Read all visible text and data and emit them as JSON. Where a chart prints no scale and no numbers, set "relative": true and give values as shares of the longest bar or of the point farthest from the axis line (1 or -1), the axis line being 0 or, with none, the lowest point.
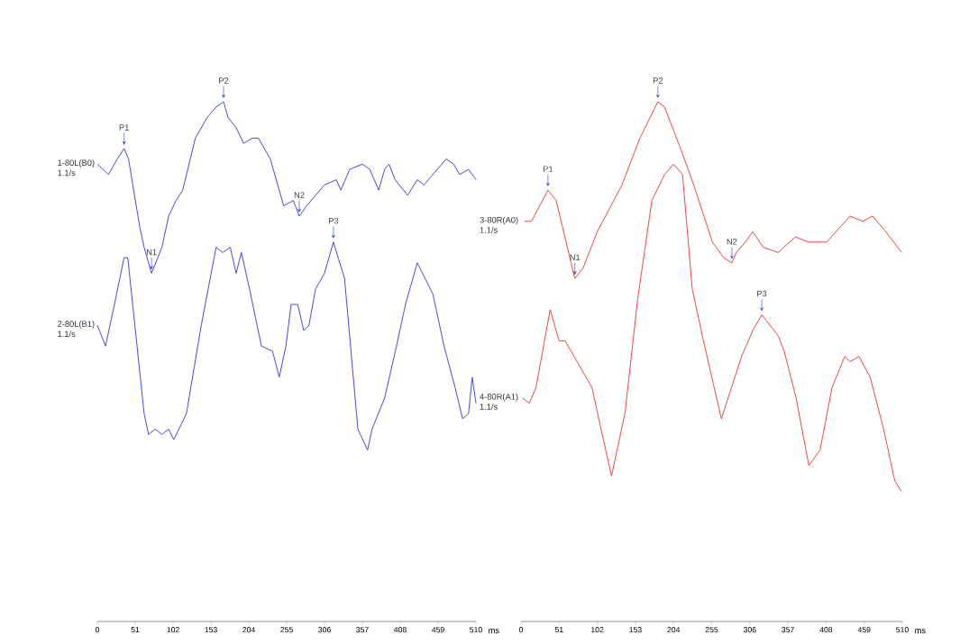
{
  "chart_data": [
    {
      "type": "line",
      "relative": true,
      "xlim": [
        0,
        510
      ],
      "xticks": [
        0,
        51,
        102,
        153,
        204,
        255,
        306,
        357,
        408,
        459,
        510
      ],
      "xlabel": "ms",
      "series": [
        {
          "name": "1-80L(B0)",
          "color": "#3c3cd8",
          "x": [
            0,
            15,
            27,
            36,
            42,
            57,
            63,
            73,
            87,
            96,
            106,
            115,
            132,
            136,
            148,
            160,
            170,
            176,
            187,
            197,
            209,
            217,
            233,
            243,
            251,
            264,
            272,
            282,
            294,
            306,
            322,
            328,
            340,
            357,
            367,
            379,
            387,
            393,
            401,
            418,
            431,
            440,
            458,
            470,
            480,
            488,
            500,
            510
          ],
          "values": [
            0.88,
            0.86,
            0.89,
            0.91,
            0.89,
            0.76,
            0.72,
            0.67,
            0.72,
            0.78,
            0.81,
            0.83,
            0.93,
            0.94,
            0.97,
            0.99,
            1.0,
            0.97,
            0.95,
            0.92,
            0.93,
            0.93,
            0.89,
            0.84,
            0.8,
            0.81,
            0.78,
            0.8,
            0.82,
            0.84,
            0.85,
            0.83,
            0.87,
            0.88,
            0.87,
            0.83,
            0.87,
            0.88,
            0.85,
            0.82,
            0.85,
            0.84,
            0.87,
            0.89,
            0.88,
            0.86,
            0.87,
            0.85
          ]
        },
        {
          "name": "2-80L(B1)",
          "color": "#3c3cd8",
          "x": [
            0,
            11,
            23,
            36,
            41,
            63,
            69,
            78,
            87,
            96,
            103,
            120,
            140,
            160,
            169,
            179,
            187,
            194,
            205,
            221,
            236,
            245,
            254,
            261,
            270,
            278,
            285,
            294,
            306,
            318,
            333,
            351,
            364,
            370,
            387,
            403,
            415,
            431,
            452,
            467,
            482,
            492,
            500,
            505,
            510
          ],
          "values": [
            0.57,
            0.53,
            0.61,
            0.7,
            0.7,
            0.4,
            0.36,
            0.37,
            0.36,
            0.37,
            0.35,
            0.4,
            0.57,
            0.72,
            0.71,
            0.72,
            0.67,
            0.71,
            0.64,
            0.53,
            0.52,
            0.47,
            0.53,
            0.61,
            0.61,
            0.56,
            0.57,
            0.64,
            0.67,
            0.73,
            0.66,
            0.37,
            0.33,
            0.37,
            0.43,
            0.53,
            0.61,
            0.69,
            0.63,
            0.53,
            0.45,
            0.39,
            0.4,
            0.47,
            0.42
          ]
        }
      ],
      "annotations": [
        {
          "text": "P1",
          "x": 36,
          "y": 0.91
        },
        {
          "text": "N1",
          "x": 73,
          "y": 0.67
        },
        {
          "text": "P2",
          "x": 170,
          "y": 1.0
        },
        {
          "text": "N2",
          "x": 272,
          "y": 0.78
        },
        {
          "text": "P3",
          "x": 318,
          "y": 0.73
        },
        "1.1/s",
        "1.1/s"
      ]
    },
    {
      "type": "line",
      "relative": true,
      "xlim": [
        0,
        510
      ],
      "xticks": [
        0,
        51,
        102,
        153,
        204,
        255,
        306,
        357,
        408,
        459,
        510
      ],
      "xlabel": "ms",
      "series": [
        {
          "name": "3-80R(A0)",
          "color": "#ec3a3a",
          "x": [
            5,
            14,
            36,
            47,
            72,
            83,
            102,
            135,
            159,
            183,
            192,
            216,
            231,
            256,
            271,
            282,
            288,
            300,
            310,
            324,
            344,
            367,
            385,
            409,
            440,
            457,
            470,
            488,
            509
          ],
          "values": [
            0.77,
            0.77,
            0.83,
            0.81,
            0.66,
            0.68,
            0.75,
            0.84,
            0.93,
            1.0,
            0.99,
            0.9,
            0.84,
            0.73,
            0.7,
            0.69,
            0.71,
            0.73,
            0.75,
            0.72,
            0.71,
            0.74,
            0.73,
            0.73,
            0.78,
            0.77,
            0.78,
            0.75,
            0.71
          ]
        },
        {
          "name": "4-80R(A1)",
          "color": "#ec3a3a",
          "x": [
            2,
            11,
            20,
            39,
            51,
            59,
            83,
            95,
            107,
            121,
            139,
            156,
            175,
            192,
            204,
            216,
            229,
            244,
            268,
            295,
            310,
            322,
            344,
            352,
            368,
            385,
            400,
            416,
            433,
            440,
            452,
            467,
            485,
            500,
            509
          ],
          "values": [
            0.43,
            0.42,
            0.45,
            0.6,
            0.54,
            0.54,
            0.48,
            0.45,
            0.37,
            0.28,
            0.4,
            0.62,
            0.81,
            0.86,
            0.88,
            0.86,
            0.64,
            0.54,
            0.39,
            0.51,
            0.56,
            0.59,
            0.55,
            0.52,
            0.43,
            0.3,
            0.33,
            0.45,
            0.51,
            0.5,
            0.51,
            0.47,
            0.37,
            0.27,
            0.25
          ]
        }
      ],
      "annotations": [
        {
          "text": "P1",
          "x": 36,
          "y": 0.83
        },
        {
          "text": "N1",
          "x": 72,
          "y": 0.66
        },
        {
          "text": "P2",
          "x": 183,
          "y": 1.0
        },
        {
          "text": "N2",
          "x": 282,
          "y": 0.69
        },
        {
          "text": "P3",
          "x": 322,
          "y": 0.59
        },
        "1.1/s",
        "1.1/s"
      ]
    }
  ]
}
